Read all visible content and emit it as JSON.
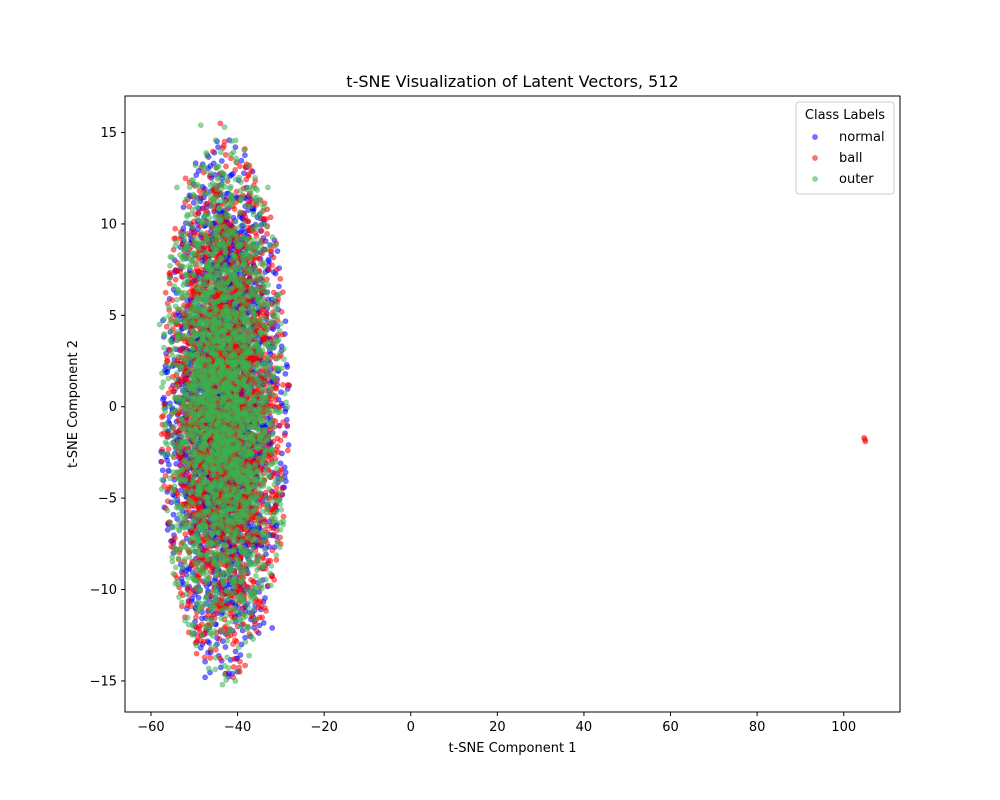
{
  "chart_data": {
    "type": "scatter",
    "title": "t-SNE Visualization of Latent Vectors, 512",
    "xlabel": "t-SNE Component 1",
    "ylabel": "t-SNE Component 2",
    "xlim": [
      -66,
      113
    ],
    "ylim": [
      -16.7,
      17.0
    ],
    "xticks": [
      -60,
      -40,
      -20,
      0,
      20,
      40,
      60,
      80,
      100
    ],
    "yticks": [
      -15,
      -10,
      -5,
      0,
      5,
      10,
      15
    ],
    "grid": false,
    "legend": {
      "title": "Class Labels",
      "placement": "top-right"
    },
    "series": [
      {
        "name": "normal",
        "color": "#0000ff",
        "alpha": 0.55,
        "cluster": {
          "center": [
            -43,
            0
          ],
          "extent_x": [
            -58,
            -28
          ],
          "extent_y": [
            -15,
            15
          ],
          "approx_points": 2800
        },
        "points": [
          [
            -44.5,
            14.2
          ],
          [
            -40.5,
            14.2
          ],
          [
            -49,
            12.9
          ],
          [
            -57,
            0.5
          ],
          [
            -56,
            -3.5
          ],
          [
            -30,
            0.8
          ],
          [
            -31,
            -6.5
          ],
          [
            -32,
            -12.1
          ],
          [
            -47.5,
            -14.8
          ],
          [
            -42,
            -14.6
          ]
        ]
      },
      {
        "name": "ball",
        "color": "#ff0000",
        "alpha": 0.55,
        "cluster": {
          "center": [
            -43,
            0
          ],
          "extent_x": [
            -58,
            -28
          ],
          "extent_y": [
            -15,
            15
          ],
          "approx_points": 2800
        },
        "points": [
          [
            -44,
            15.5
          ],
          [
            -43,
            14.5
          ],
          [
            -52,
            12.5
          ],
          [
            -56,
            -1.5
          ],
          [
            -57.5,
            -1.5
          ],
          [
            -29.5,
            1.2
          ],
          [
            -30.5,
            0.0
          ],
          [
            -31,
            7.5
          ],
          [
            -39.5,
            -14.5
          ],
          [
            -41,
            -14.8
          ],
          [
            104.7,
            -1.7
          ],
          [
            105.0,
            -1.9
          ],
          [
            104.9,
            -1.8
          ]
        ]
      },
      {
        "name": "outer",
        "color": "#3cb050",
        "alpha": 0.55,
        "cluster": {
          "center": [
            -43,
            0
          ],
          "extent_x": [
            -58,
            -28
          ],
          "extent_y": [
            -15,
            15
          ],
          "approx_points": 2800
        },
        "points": [
          [
            -48.5,
            15.4
          ],
          [
            -43,
            15.3
          ],
          [
            -58,
            4.5
          ],
          [
            -57.5,
            -4.5
          ],
          [
            -28.5,
            0.0
          ],
          [
            -30,
            -4.0
          ],
          [
            -40.5,
            -15.0
          ],
          [
            -43.5,
            -15.2
          ],
          [
            -54,
            12.0
          ],
          [
            -33,
            12.0
          ]
        ]
      }
    ]
  }
}
